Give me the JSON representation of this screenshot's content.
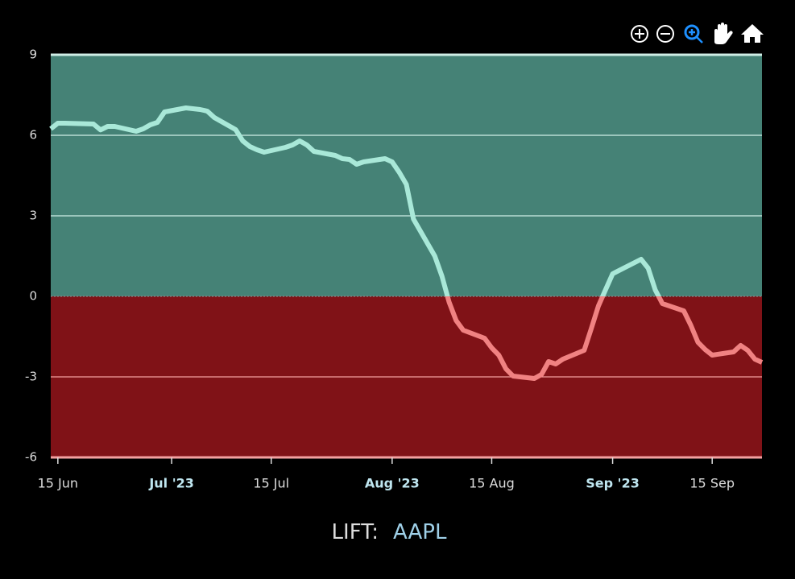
{
  "chart_data": {
    "type": "line",
    "label": "LIFT:",
    "symbol": "AAPL",
    "x": [
      "2023-06-14",
      "2023-06-15",
      "2023-06-16",
      "2023-06-20",
      "2023-06-21",
      "2023-06-22",
      "2023-06-23",
      "2023-06-26",
      "2023-06-27",
      "2023-06-28",
      "2023-06-29",
      "2023-06-30",
      "2023-07-03",
      "2023-07-05",
      "2023-07-06",
      "2023-07-07",
      "2023-07-10",
      "2023-07-11",
      "2023-07-12",
      "2023-07-13",
      "2023-07-14",
      "2023-07-17",
      "2023-07-18",
      "2023-07-19",
      "2023-07-20",
      "2023-07-21",
      "2023-07-24",
      "2023-07-25",
      "2023-07-26",
      "2023-07-27",
      "2023-07-28",
      "2023-07-31",
      "2023-08-01",
      "2023-08-02",
      "2023-08-03",
      "2023-08-04",
      "2023-08-07",
      "2023-08-08",
      "2023-08-09",
      "2023-08-10",
      "2023-08-11",
      "2023-08-14",
      "2023-08-15",
      "2023-08-16",
      "2023-08-17",
      "2023-08-18",
      "2023-08-21",
      "2023-08-22",
      "2023-08-23",
      "2023-08-24",
      "2023-08-25",
      "2023-08-28",
      "2023-08-29",
      "2023-08-30",
      "2023-08-31",
      "2023-09-01",
      "2023-09-05",
      "2023-09-06",
      "2023-09-07",
      "2023-09-08",
      "2023-09-11",
      "2023-09-12",
      "2023-09-13",
      "2023-09-14",
      "2023-09-15",
      "2023-09-18",
      "2023-09-19",
      "2023-09-20",
      "2023-09-21",
      "2023-09-22"
    ],
    "values": [
      6.24,
      6.45,
      6.45,
      6.42,
      6.2,
      6.33,
      6.33,
      6.15,
      6.24,
      6.39,
      6.48,
      6.87,
      7.02,
      6.96,
      6.9,
      6.66,
      6.21,
      5.79,
      5.58,
      5.46,
      5.37,
      5.55,
      5.64,
      5.79,
      5.64,
      5.4,
      5.25,
      5.13,
      5.1,
      4.92,
      5.01,
      5.13,
      5.01,
      4.62,
      4.17,
      2.88,
      1.5,
      0.75,
      -0.21,
      -0.9,
      -1.26,
      -1.56,
      -1.92,
      -2.19,
      -2.7,
      -2.97,
      -3.06,
      -2.91,
      -2.43,
      -2.52,
      -2.34,
      -2.01,
      -1.2,
      -0.36,
      0.24,
      0.84,
      1.38,
      1.05,
      0.24,
      -0.27,
      -0.54,
      -1.08,
      -1.71,
      -1.98,
      -2.19,
      -2.07,
      -1.83,
      -2.01,
      -2.34,
      -2.46
    ],
    "positive_color": "#a9e8d8",
    "negative_color": "#f08282",
    "positive_band": "#458276",
    "negative_band": "#801217",
    "xlim": [
      "2023-06-14",
      "2023-09-22"
    ],
    "xticks": [
      {
        "value": "2023-06-15",
        "label": "15 Jun"
      },
      {
        "value": "2023-07-01",
        "label": "Jul '23"
      },
      {
        "value": "2023-07-15",
        "label": "15 Jul"
      },
      {
        "value": "2023-08-01",
        "label": "Aug '23"
      },
      {
        "value": "2023-08-15",
        "label": "15 Aug"
      },
      {
        "value": "2023-09-01",
        "label": "Sep '23"
      },
      {
        "value": "2023-09-15",
        "label": "15 Sep"
      }
    ],
    "ylim": [
      -6,
      9
    ],
    "yticks": [
      9,
      6,
      3,
      0,
      -3,
      -6
    ],
    "grid": true
  }
}
